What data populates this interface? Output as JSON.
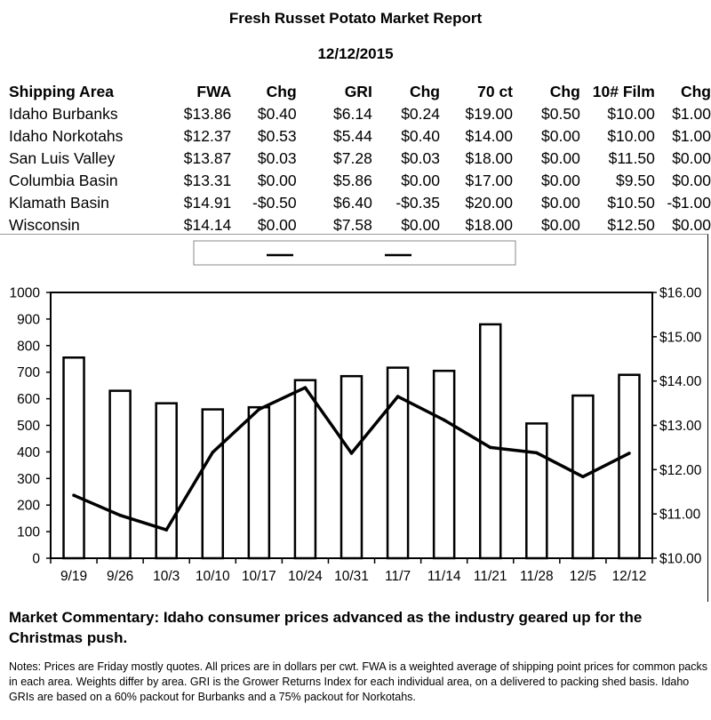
{
  "report": {
    "title": "Fresh Russet Potato Market Report",
    "date": "12/12/2015"
  },
  "table": {
    "headers": [
      "Shipping Area",
      "FWA",
      "Chg",
      "GRI",
      "Chg",
      "70 ct",
      "Chg",
      "10# Film",
      "Chg"
    ],
    "rows": [
      [
        "Idaho Burbanks",
        "$13.86",
        "$0.40",
        "$6.14",
        "$0.24",
        "$19.00",
        "$0.50",
        "$10.00",
        "$1.00"
      ],
      [
        "Idaho Norkotahs",
        "$12.37",
        "$0.53",
        "$5.44",
        "$0.40",
        "$14.00",
        "$0.00",
        "$10.00",
        "$1.00"
      ],
      [
        "San Luis Valley",
        "$13.87",
        "$0.03",
        "$7.28",
        "$0.03",
        "$18.00",
        "$0.00",
        "$11.50",
        "$0.00"
      ],
      [
        "Columbia Basin",
        "$13.31",
        "$0.00",
        "$5.86",
        "$0.00",
        "$17.00",
        "$0.00",
        "$9.50",
        "$0.00"
      ],
      [
        "Klamath Basin",
        "$14.91",
        "-$0.50",
        "$6.40",
        "-$0.35",
        "$20.00",
        "$0.00",
        "$10.50",
        "-$1.00"
      ],
      [
        "Wisconsin",
        "$14.14",
        "$0.00",
        "$7.58",
        "$0.00",
        "$18.00",
        "$0.00",
        "$12.50",
        "$0.00"
      ]
    ]
  },
  "chart_data": {
    "type": "bar",
    "categories": [
      "9/19",
      "9/26",
      "10/3",
      "10/10",
      "10/17",
      "10/24",
      "10/31",
      "11/7",
      "11/14",
      "11/21",
      "11/28",
      "12/5",
      "12/12"
    ],
    "series": [
      {
        "type": "bar",
        "axis": "left",
        "values": [
          755,
          630,
          583,
          560,
          568,
          670,
          685,
          717,
          705,
          880,
          507,
          612,
          690
        ]
      },
      {
        "type": "line",
        "axis": "right",
        "values": [
          11.42,
          10.97,
          10.64,
          12.39,
          13.36,
          13.85,
          12.37,
          13.65,
          13.12,
          12.5,
          12.38,
          11.84,
          12.37
        ]
      }
    ],
    "left_axis": {
      "min": 0,
      "max": 1000,
      "step": 100,
      "tick_labels": [
        "0",
        "100",
        "200",
        "300",
        "400",
        "500",
        "600",
        "700",
        "800",
        "900",
        "1000"
      ]
    },
    "right_axis": {
      "min": 10,
      "max": 16,
      "step": 1,
      "tick_labels": [
        "$10.00",
        "$11.00",
        "$12.00",
        "$13.00",
        "$14.00",
        "$15.00",
        "$16.00"
      ]
    },
    "legend": {
      "placement": "top-center"
    },
    "grid": false,
    "colors": {
      "bar_fill": "#ffffff",
      "bar_stroke": "#000000",
      "line": "#000000"
    }
  },
  "commentary": "Market Commentary: Idaho consumer prices advanced as the industry geared up for the Christmas push.",
  "notes": "Notes: Prices are Friday mostly quotes. All prices are in dollars per cwt. FWA is a weighted average of shipping point prices for  common packs in each area. Weights differ by area. GRI is the Grower Returns Index for each individual area, on a delivered to packing shed basis. Idaho GRIs are based on a 60% packout for Burbanks and a 75% packout for Norkotahs."
}
